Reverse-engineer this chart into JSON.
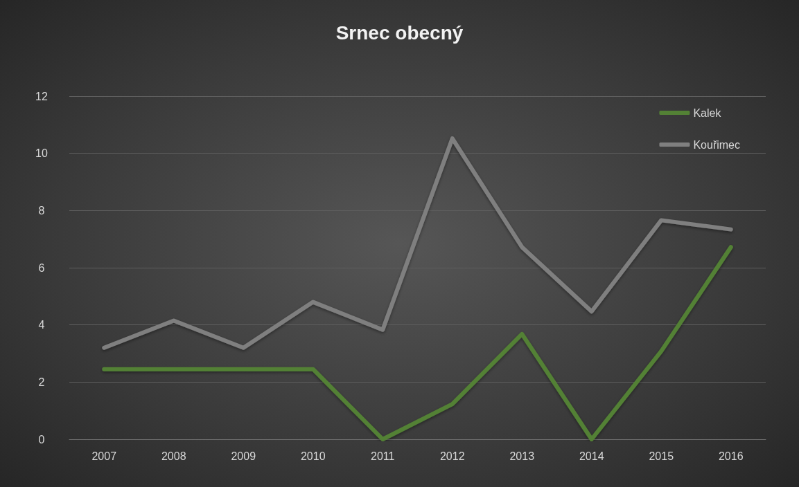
{
  "chart_data": {
    "type": "line",
    "title": "Srnec obecný",
    "categories": [
      "2007",
      "2008",
      "2009",
      "2010",
      "2011",
      "2012",
      "2013",
      "2014",
      "2015",
      "2016"
    ],
    "series": [
      {
        "name": "Kalek",
        "color": "#538135",
        "values": [
          2.45,
          2.45,
          2.45,
          2.45,
          0,
          1.23,
          3.68,
          0,
          3.08,
          6.72
        ]
      },
      {
        "name": "Kouřimec",
        "color": "#7f7f7f",
        "values": [
          3.2,
          4.15,
          3.2,
          4.8,
          3.83,
          10.52,
          6.72,
          4.47,
          7.66,
          7.34
        ]
      }
    ],
    "ylim": [
      0,
      12
    ],
    "yticks": [
      0,
      2,
      4,
      6,
      8,
      10,
      12
    ],
    "grid": "y",
    "legend": "top right",
    "marker": "none",
    "line_style": "solid"
  }
}
